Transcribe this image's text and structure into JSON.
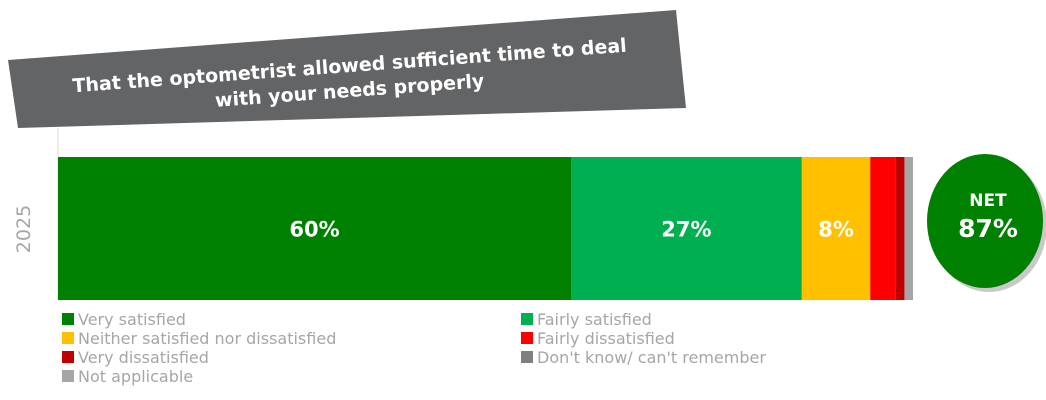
{
  "colors": {
    "title_bg": "#636466",
    "very_satisfied": "#008000",
    "fairly_satisfied": "#00b050",
    "neither": "#ffc000",
    "fairly_dissatisfied": "#ff0000",
    "very_dissatisfied": "#c00000",
    "dont_know": "#7f7f7f",
    "not_applicable": "#a6a6a6",
    "net_circle": "#008000",
    "axis_text": "#a6a6a6"
  },
  "chart_data": {
    "type": "bar",
    "orientation": "horizontal",
    "stacked": true,
    "title_lines": [
      "That the optometrist allowed sufficient time to deal",
      "with your needs properly"
    ],
    "categories": [
      "2025"
    ],
    "xlim": [
      0,
      100
    ],
    "series": [
      {
        "name": "Very satisfied",
        "values": [
          60
        ],
        "label": "60%",
        "color": "#008000"
      },
      {
        "name": "Fairly satisfied",
        "values": [
          27
        ],
        "label": "27%",
        "color": "#00b050"
      },
      {
        "name": "Neither satisfied nor dissatisfied",
        "values": [
          8
        ],
        "label": "8%",
        "color": "#ffc000"
      },
      {
        "name": "Fairly dissatisfied",
        "values": [
          3
        ],
        "label": "",
        "color": "#ff0000"
      },
      {
        "name": "Very dissatisfied",
        "values": [
          1
        ],
        "label": "",
        "color": "#c00000"
      },
      {
        "name": "Don't know/ can't remember",
        "values": [
          0
        ],
        "label": "",
        "color": "#7f7f7f"
      },
      {
        "name": "Not applicable",
        "values": [
          1
        ],
        "label": "",
        "color": "#a6a6a6"
      }
    ],
    "legend_position": "bottom",
    "net": {
      "label": "NET",
      "value": "87%"
    }
  }
}
